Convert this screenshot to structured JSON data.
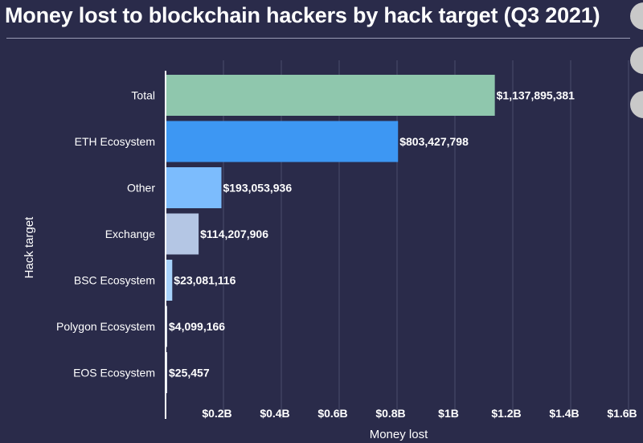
{
  "page": {
    "title": "Money lost to blockchain hackers by hack target (Q3 2021)"
  },
  "chart_data": {
    "type": "bar",
    "orientation": "horizontal",
    "title": "Money lost to blockchain hackers by hack target (Q3 2021)",
    "xlabel": "Money lost",
    "ylabel": "Hack target",
    "xlim": [
      0,
      1.6
    ],
    "x_unit": "billions USD",
    "grid": true,
    "legend": "none",
    "x_ticks": [
      {
        "value": 0.2,
        "label": "$0.2B"
      },
      {
        "value": 0.4,
        "label": "$0.4B"
      },
      {
        "value": 0.6,
        "label": "$0.6B"
      },
      {
        "value": 0.8,
        "label": "$0.8B"
      },
      {
        "value": 1.0,
        "label": "$1B"
      },
      {
        "value": 1.2,
        "label": "$1.2B"
      },
      {
        "value": 1.4,
        "label": "$1.4B"
      },
      {
        "value": 1.6,
        "label": "$1.6B"
      }
    ],
    "categories": [
      "Total",
      "ETH Ecosystem",
      "Other",
      "Exchange",
      "BSC Ecosystem",
      "Polygon Ecosystem",
      "EOS Ecosystem"
    ],
    "values": [
      1137895381,
      803427798,
      193053936,
      114207906,
      23081116,
      4099166,
      25457
    ],
    "value_labels": [
      "$1,137,895,381",
      "$803,427,798",
      "$193,053,936",
      "$114,207,906",
      "$23,081,116",
      "$4,099,166",
      "$25,457"
    ],
    "colors": [
      "#8fc7ad",
      "#3d97f3",
      "#7cbcfd",
      "#b4c6e4",
      "#a7d2fb",
      "#d4dbe6",
      "#dde3ec"
    ],
    "style": {
      "grid_color": "#4a4c6c",
      "axis_color": "#ffffff"
    }
  }
}
